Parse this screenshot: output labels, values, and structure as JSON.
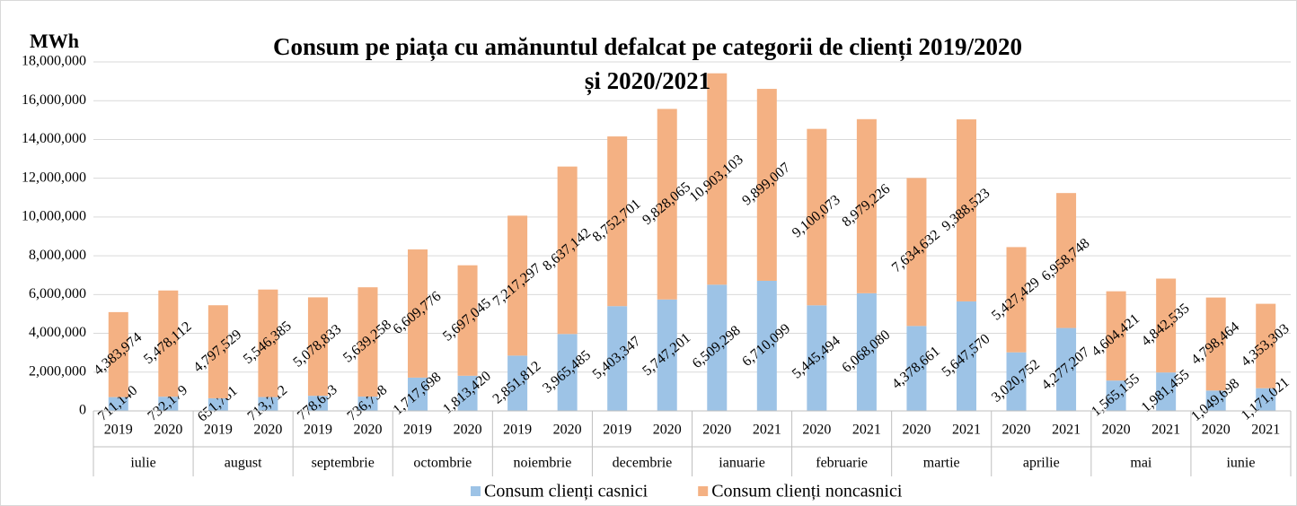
{
  "chart_data": {
    "type": "stacked_bar",
    "title": "Consum pe piața cu amănuntul defalcat pe categorii de clienți 2019/2020 și 2020/2021",
    "y_label": "MWh",
    "categories": [
      "2019",
      "2020",
      "2019",
      "2020",
      "2019",
      "2020",
      "2019",
      "2020",
      "2019",
      "2020",
      "2019",
      "2020",
      "2020",
      "2021",
      "2020",
      "2021",
      "2020",
      "2021",
      "2020",
      "2021",
      "2020",
      "2021",
      "2020",
      "2021"
    ],
    "category_groups": [
      "iulie",
      "august",
      "septembrie",
      "octombrie",
      "noiembrie",
      "decembrie",
      "ianuarie",
      "februarie",
      "martie",
      "aprilie",
      "mai",
      "iunie"
    ],
    "series": [
      {
        "name": "Consum clienți casnici",
        "color": "#9dc3e6",
        "values": [
          711140,
          732179,
          651781,
          713712,
          778653,
          736798,
          1717698,
          1813420,
          2851812,
          3965485,
          5403347,
          5747201,
          6509298,
          6710099,
          5445494,
          6068080,
          4378661,
          5647570,
          3020752,
          4277207,
          1565155,
          1981455,
          1049698,
          1171021
        ],
        "value_labels": [
          "711,140",
          "732,179",
          "651,781",
          "713,712",
          "778,653",
          "736,798",
          "1,717,698",
          "1,813,420",
          "2,851,812",
          "3,965,485",
          "5,403,347",
          "5,747,201",
          "6,509,298",
          "6,710,099",
          "5,445,494",
          "6,068,080",
          "4,378,661",
          "5,647,570",
          "3,020,752",
          "4,277,207",
          "1,565,155",
          "1,981,455",
          "1,049,698",
          "1,171,021"
        ]
      },
      {
        "name": "Consum clienți noncasnici",
        "color": "#f4b183",
        "values": [
          4383974,
          5478112,
          4797529,
          5546385,
          5078833,
          5639258,
          6609776,
          5697045,
          7217297,
          8637142,
          8752701,
          9828065,
          10903103,
          9899007,
          9100073,
          8979226,
          7634632,
          9388523,
          5427429,
          6958748,
          4604421,
          4842535,
          4798464,
          4353303
        ],
        "value_labels": [
          "4,383,974",
          "5,478,112",
          "4,797,529",
          "5,546,385",
          "5,078,833",
          "5,639,258",
          "6,609,776",
          "5,697,045",
          "7,217,297",
          "8,637,142",
          "8,752,701",
          "9,828,065",
          "10,903,103",
          "9,899,007",
          "9,100,073",
          "8,979,226",
          "7,634,632",
          "9,388,523",
          "5,427,429",
          "6,958,748",
          "4,604,421",
          "4,842,535",
          "4,798,464",
          "4,353,303"
        ]
      }
    ],
    "ylim": [
      0,
      18000000
    ],
    "yticks": [
      0,
      {
        "value": 2000000,
        "label": "2,000,000"
      },
      {
        "value": 4000000,
        "label": "4,000,000"
      },
      {
        "value": 6000000,
        "label": "6,000,000"
      },
      {
        "value": 8000000,
        "label": "8,000,000"
      },
      {
        "value": 10000000,
        "label": "10,000,000"
      },
      {
        "value": 12000000,
        "label": "12,000,000"
      },
      {
        "value": 14000000,
        "label": "14,000,000"
      },
      {
        "value": 16000000,
        "label": "16,000,000"
      },
      {
        "value": 18000000,
        "label": "18,000,000"
      }
    ],
    "grid": true,
    "legend": "bottom"
  }
}
